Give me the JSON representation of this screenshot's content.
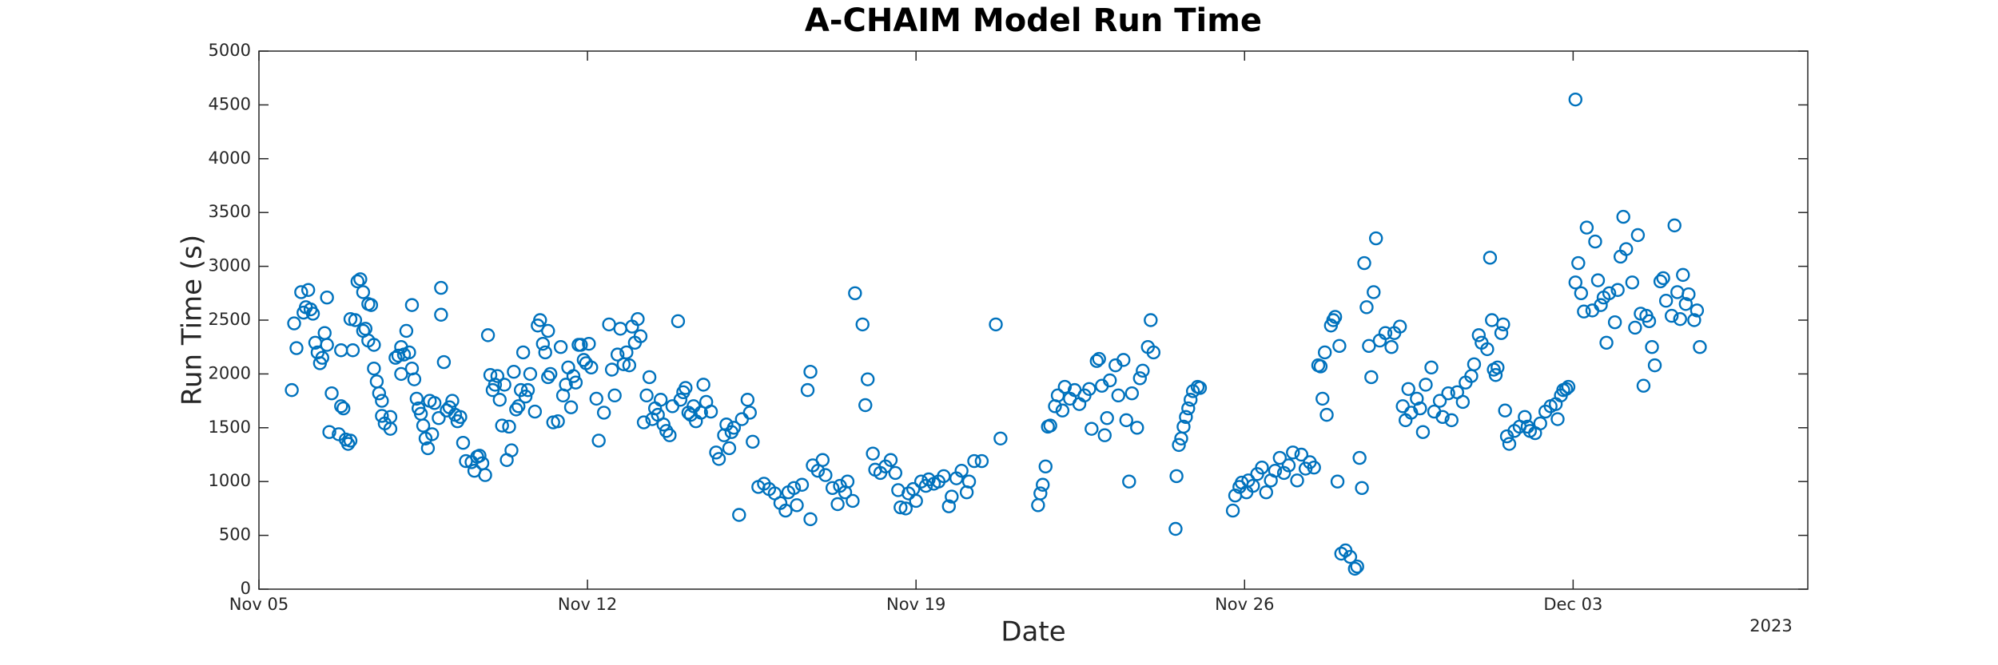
{
  "chart_data": {
    "type": "scatter",
    "title": "A-CHAIM Model Run Time",
    "x_label": "Date",
    "y_label": "Run Time (s)",
    "year_label": "2023",
    "color": "#0072BD",
    "marker": "circle",
    "grid": false,
    "xlim": [
      0,
      33
    ],
    "xticks": [
      {
        "value": 0,
        "label": "Nov 05"
      },
      {
        "value": 7,
        "label": "Nov 12"
      },
      {
        "value": 14,
        "label": "Nov 19"
      },
      {
        "value": 21,
        "label": "Nov 26"
      },
      {
        "value": 28,
        "label": "Dec 03"
      }
    ],
    "ylim": [
      0,
      5000
    ],
    "yticks": [
      0,
      500,
      1000,
      1500,
      2000,
      2500,
      3000,
      3500,
      4000,
      4500,
      5000
    ],
    "x": [
      0.7,
      0.75,
      0.8,
      0.9,
      0.95,
      1.0,
      1.05,
      1.1,
      1.15,
      1.2,
      1.25,
      1.3,
      1.35,
      1.4,
      1.45,
      1.45,
      1.55,
      1.5,
      1.7,
      1.75,
      1.8,
      1.75,
      1.85,
      1.9,
      1.95,
      2.0,
      1.95,
      2.05,
      2.1,
      2.16,
      2.22,
      2.27,
      2.22,
      2.33,
      2.39,
      2.33,
      2.45,
      2.45,
      2.51,
      2.56,
      2.62,
      2.62,
      2.68,
      2.8,
      2.8,
      2.91,
      2.97,
      3.03,
      3.03,
      3.09,
      3.2,
      3.14,
      3.26,
      3.26,
      3.31,
      3.36,
      3.4,
      3.45,
      3.5,
      3.55,
      3.6,
      3.64,
      3.69,
      3.74,
      3.83,
      3.88,
      3.88,
      3.94,
      4.0,
      4.06,
      4.12,
      4.18,
      4.23,
      4.29,
      4.35,
      4.41,
      4.53,
      4.59,
      4.65,
      4.7,
      4.76,
      4.82,
      4.88,
      4.93,
      4.98,
      5.03,
      5.08,
      5.13,
      5.18,
      5.23,
      5.33,
      5.28,
      5.38,
      5.43,
      5.48,
      5.53,
      5.58,
      5.63,
      5.68,
      5.73,
      5.78,
      5.88,
      5.94,
      5.99,
      6.05,
      6.1,
      6.16,
      6.16,
      6.21,
      6.27,
      6.37,
      6.43,
      6.48,
      6.54,
      6.59,
      6.65,
      6.7,
      6.75,
      6.81,
      6.86,
      6.92,
      6.97,
      7.03,
      7.08,
      7.19,
      7.24,
      7.35,
      7.46,
      7.52,
      7.58,
      7.64,
      7.7,
      7.77,
      7.83,
      7.89,
      7.95,
      8.01,
      8.07,
      8.13,
      8.2,
      8.26,
      8.32,
      8.38,
      8.44,
      8.5,
      8.56,
      8.62,
      8.68,
      8.75,
      8.81,
      8.93,
      8.98,
      9.04,
      9.09,
      9.15,
      9.2,
      9.26,
      9.31,
      9.42,
      9.47,
      9.53,
      9.63,
      9.74,
      9.8,
      9.91,
      9.96,
      10.02,
      10.07,
      10.12,
      10.23,
      10.29,
      10.41,
      10.46,
      10.52,
      10.64,
      10.76,
      10.87,
      10.99,
      11.11,
      11.22,
      11.28,
      11.4,
      11.46,
      11.57,
      11.69,
      11.75,
      11.75,
      11.8,
      11.91,
      12.01,
      12.07,
      12.22,
      12.33,
      12.38,
      12.49,
      12.54,
      12.65,
      12.7,
      12.86,
      12.92,
      12.97,
      13.08,
      13.13,
      13.24,
      13.35,
      13.46,
      13.56,
      13.62,
      13.67,
      13.78,
      13.84,
      13.94,
      14.0,
      14.11,
      14.21,
      14.27,
      14.38,
      14.48,
      14.59,
      14.7,
      14.76,
      14.86,
      14.97,
      15.08,
      15.13,
      15.24,
      15.4,
      15.7,
      15.8,
      16.6,
      16.65,
      16.7,
      16.76,
      16.81,
      16.86,
      16.96,
      17.02,
      17.12,
      17.17,
      17.28,
      17.38,
      17.48,
      17.59,
      17.69,
      17.74,
      17.85,
      17.9,
      17.96,
      18.02,
      18.07,
      18.13,
      18.25,
      18.31,
      18.42,
      18.48,
      18.54,
      18.6,
      18.71,
      18.77,
      18.83,
      18.94,
      19.0,
      19.06,
      19.53,
      19.55,
      19.6,
      19.65,
      19.7,
      19.75,
      19.8,
      19.85,
      19.9,
      20.0,
      20.05,
      20.75,
      20.8,
      20.89,
      20.94,
      21.04,
      21.08,
      21.18,
      21.27,
      21.37,
      21.46,
      21.56,
      21.65,
      21.75,
      21.84,
      21.94,
      22.03,
      22.12,
      22.21,
      22.3,
      22.39,
      22.48,
      22.57,
      22.62,
      22.66,
      22.71,
      22.75,
      22.84,
      22.89,
      22.93,
      22.98,
      23.02,
      23.06,
      23.15,
      23.25,
      23.35,
      23.4,
      23.45,
      23.5,
      23.55,
      23.6,
      23.65,
      23.7,
      23.75,
      23.8,
      23.88,
      24.0,
      24.13,
      24.19,
      24.31,
      24.37,
      24.43,
      24.49,
      24.55,
      24.67,
      24.74,
      24.8,
      24.86,
      24.98,
      25.04,
      25.16,
      25.22,
      25.34,
      25.41,
      25.53,
      25.65,
      25.71,
      25.83,
      25.89,
      25.99,
      26.05,
      26.17,
      26.23,
      26.27,
      26.31,
      26.35,
      26.39,
      26.47,
      26.51,
      26.55,
      26.59,
      26.64,
      26.75,
      26.86,
      26.97,
      27.03,
      27.08,
      27.19,
      27.3,
      27.41,
      27.52,
      27.63,
      27.67,
      27.74,
      27.79,
      27.85,
      27.9,
      28.05,
      28.05,
      28.11,
      28.17,
      28.23,
      28.29,
      28.41,
      28.47,
      28.53,
      28.59,
      28.65,
      28.71,
      28.77,
      28.89,
      28.95,
      29.01,
      29.07,
      29.13,
      29.26,
      29.32,
      29.38,
      29.44,
      29.5,
      29.56,
      29.62,
      29.68,
      29.74,
      29.86,
      29.92,
      29.98,
      30.1,
      30.16,
      30.22,
      30.28,
      30.34,
      30.4,
      30.46,
      30.58,
      30.64,
      30.7
    ],
    "values": [
      1850,
      2470,
      2240,
      2760,
      2570,
      2620,
      2780,
      2600,
      2560,
      2290,
      2200,
      2100,
      2150,
      2380,
      2270,
      2710,
      1820,
      1460,
      1440,
      1700,
      1680,
      2220,
      1390,
      1350,
      1380,
      2220,
      2510,
      2500,
      2860,
      2880,
      2760,
      2420,
      2400,
      2650,
      2640,
      2310,
      2270,
      2050,
      1930,
      1820,
      1750,
      1610,
      1540,
      1490,
      1600,
      2150,
      2170,
      2250,
      2000,
      2180,
      2200,
      2400,
      2640,
      2050,
      1950,
      1770,
      1680,
      1630,
      1520,
      1400,
      1310,
      1750,
      1440,
      1730,
      1590,
      2800,
      2550,
      2110,
      1660,
      1690,
      1750,
      1620,
      1560,
      1600,
      1360,
      1190,
      1180,
      1100,
      1230,
      1240,
      1170,
      1060,
      2360,
      1990,
      1850,
      1900,
      1980,
      1760,
      1520,
      1900,
      1510,
      1200,
      1290,
      2020,
      1670,
      1700,
      1850,
      2200,
      1790,
      1850,
      2000,
      1650,
      2450,
      2500,
      2280,
      2200,
      2400,
      1970,
      2000,
      1550,
      1560,
      2250,
      1800,
      1900,
      2060,
      1690,
      1980,
      1920,
      2270,
      2270,
      2130,
      2100,
      2280,
      2060,
      1770,
      1380,
      1640,
      2460,
      2040,
      1800,
      2180,
      2420,
      2090,
      2200,
      2080,
      2440,
      2290,
      2510,
      2350,
      1550,
      1800,
      1970,
      1580,
      1680,
      1620,
      1760,
      1530,
      1470,
      1430,
      1700,
      2490,
      1760,
      1830,
      1870,
      1640,
      1620,
      1700,
      1560,
      1640,
      1900,
      1740,
      1650,
      1270,
      1210,
      1430,
      1530,
      1310,
      1460,
      1500,
      690,
      1580,
      1760,
      1640,
      1370,
      950,
      980,
      930,
      890,
      800,
      730,
      900,
      940,
      780,
      970,
      1850,
      2020,
      650,
      1150,
      1100,
      1200,
      1060,
      940,
      790,
      960,
      900,
      1000,
      820,
      2750,
      2460,
      1710,
      1950,
      1260,
      1110,
      1080,
      1140,
      1200,
      1080,
      920,
      760,
      750,
      890,
      930,
      820,
      1000,
      960,
      1020,
      980,
      1000,
      1050,
      770,
      860,
      1030,
      1100,
      900,
      1000,
      1190,
      1190,
      2460,
      1400,
      780,
      890,
      970,
      1140,
      1510,
      1520,
      1700,
      1800,
      1660,
      1880,
      1770,
      1850,
      1720,
      1800,
      1860,
      1490,
      2120,
      2140,
      1890,
      1430,
      1590,
      1940,
      2080,
      1800,
      2130,
      1570,
      1000,
      1820,
      1500,
      1960,
      2030,
      2250,
      2500,
      2200,
      560,
      1050,
      1340,
      1400,
      1510,
      1600,
      1680,
      1760,
      1840,
      1880,
      1870,
      730,
      870,
      950,
      990,
      900,
      1010,
      960,
      1070,
      1130,
      900,
      1010,
      1100,
      1220,
      1080,
      1150,
      1270,
      1010,
      1250,
      1120,
      1180,
      1130,
      2080,
      2070,
      1770,
      2200,
      1620,
      2450,
      2500,
      2530,
      1000,
      2260,
      330,
      360,
      300,
      190,
      210,
      1220,
      940,
      3030,
      2620,
      2260,
      1970,
      2760,
      3260,
      2310,
      2380,
      2250,
      2380,
      2440,
      1700,
      1570,
      1860,
      1640,
      1770,
      1680,
      1460,
      1900,
      2060,
      1650,
      1750,
      1600,
      1820,
      1570,
      1830,
      1740,
      1920,
      1980,
      2090,
      2360,
      2290,
      2230,
      3080,
      2500,
      2040,
      1990,
      2060,
      2380,
      2460,
      1660,
      1420,
      1350,
      1470,
      1510,
      1600,
      1510,
      1470,
      1450,
      1540,
      1650,
      1700,
      1720,
      1580,
      1800,
      1850,
      1860,
      1880,
      2850,
      4550,
      3030,
      2750,
      2580,
      3360,
      2590,
      3230,
      2870,
      2640,
      2710,
      2290,
      2750,
      2480,
      2780,
      3090,
      3460,
      3160,
      2850,
      2430,
      3290,
      2560,
      1890,
      2540,
      2490,
      2250,
      2080,
      2860,
      2890,
      2680,
      2540,
      3380,
      2760,
      2510,
      2920,
      2650,
      2740,
      2500,
      2590,
      2250
    ]
  }
}
